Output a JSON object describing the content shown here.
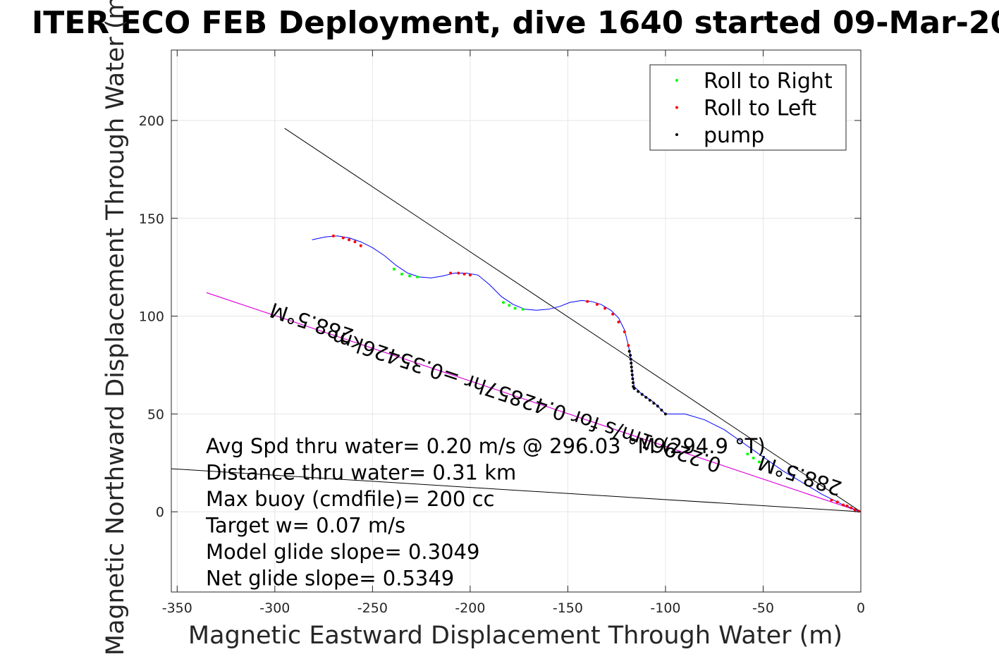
{
  "chart_data": {
    "type": "line",
    "title": "ITER ECO FEB Deployment, dive 1640 started 09-Mar-20",
    "xlabel": "Magnetic Eastward Displacement Through Water (m)",
    "ylabel": "Magnetic Northward Displacement Through Water (m)",
    "xlim": [
      -353,
      0
    ],
    "ylim": [
      -41,
      236
    ],
    "xticks": [
      -350,
      -300,
      -250,
      -200,
      -150,
      -100,
      -50,
      0
    ],
    "yticks": [
      0,
      50,
      100,
      150,
      200
    ],
    "xtick_labels": [
      "-350",
      "-300",
      "-250",
      "-200",
      "-150",
      "-100",
      "-50",
      "0"
    ],
    "ytick_labels": [
      "0",
      "50",
      "100",
      "150",
      "200"
    ],
    "grid": true,
    "legend_position": "top-right",
    "legend": [
      {
        "label": "Roll to Right",
        "color": "#00ff00"
      },
      {
        "label": "Roll to Left",
        "color": "#ff0000"
      },
      {
        "label": "pump",
        "color": "#000000"
      }
    ],
    "track": {
      "color": "#0000ff",
      "x": [
        0,
        -10,
        -20,
        -30,
        -40,
        -50,
        -60,
        -70,
        -80,
        -90,
        -100,
        -106,
        -112,
        -116,
        -117,
        -117.5,
        -118,
        -119,
        -121,
        -124,
        -128,
        -133,
        -138,
        -143,
        -149,
        -154,
        -160,
        -166,
        -172,
        -178,
        -184,
        -190,
        -196,
        -202,
        -208,
        -214,
        -220,
        -226,
        -232,
        -238,
        -244,
        -250,
        -256,
        -262,
        -268,
        -274,
        -281
      ],
      "y": [
        0,
        4,
        9,
        15,
        21,
        28,
        35,
        42,
        47,
        50,
        50,
        56,
        60,
        64,
        70,
        76,
        80,
        85,
        93,
        99,
        103,
        106,
        107.5,
        108,
        107,
        105,
        103.5,
        103,
        103.5,
        106,
        110,
        116,
        121,
        122,
        122,
        120.5,
        119.5,
        120,
        122,
        126,
        131,
        135,
        138,
        140,
        141,
        140.5,
        139
      ]
    },
    "roll_right_points": {
      "color": "#00ff00",
      "x": [
        -52,
        -55,
        -58,
        -173,
        -177,
        -180,
        -183,
        -227,
        -231,
        -235,
        -239
      ],
      "y": [
        25.5,
        27.5,
        29.5,
        103.5,
        104,
        105.5,
        107,
        120,
        120.5,
        121.5,
        124
      ]
    },
    "roll_left_points": {
      "color": "#ff0000",
      "x": [
        -1,
        -3,
        -5,
        -7,
        -9,
        -12,
        -15,
        -119,
        -121,
        -124,
        -127,
        -131,
        -135,
        -140,
        -200,
        -203,
        -206,
        -210,
        -256,
        -259,
        -262,
        -265,
        -270
      ],
      "y": [
        0.3,
        1,
        2,
        3,
        3.5,
        5,
        6,
        85,
        92,
        97,
        101,
        104,
        106,
        107.5,
        121,
        121.5,
        122,
        122,
        136,
        138,
        139,
        140,
        141
      ]
    },
    "pump_points": {
      "color": "#000000",
      "x": [
        -116.5,
        -116.6,
        -116.8,
        -117,
        -117.2,
        -117.4,
        -117.6,
        -117.8,
        -118,
        -118.5,
        -116,
        -114,
        -112,
        -110,
        -108,
        -106,
        -104,
        -102,
        -100
      ],
      "y": [
        64,
        66,
        68,
        70,
        72,
        74,
        76,
        78,
        80,
        82,
        63,
        61.5,
        60,
        58.5,
        57,
        55.5,
        54,
        52,
        50
      ]
    },
    "reference_lines": [
      {
        "name": "line-a",
        "color": "#000000",
        "x": [
          0,
          -295
        ],
        "y": [
          0,
          196
        ]
      },
      {
        "name": "line-b",
        "color": "#000000",
        "x": [
          0,
          -353
        ],
        "y": [
          0,
          22
        ]
      },
      {
        "name": "line-c",
        "color": "#000000",
        "x": [
          0,
          -335
        ],
        "y": [
          0,
          112
        ]
      },
      {
        "name": "line-d",
        "color": "#ff00ff",
        "x": [
          0,
          -335
        ],
        "y": [
          0,
          112
        ]
      }
    ],
    "rotated_labels": [
      {
        "text": "288.5°M",
        "x": -280,
        "y": 100,
        "angle": 198.5
      },
      {
        "text": "0.22961m/s for 0.42857hr =0.35426km",
        "x": -170,
        "y": 60,
        "angle": 198.5
      },
      {
        "text": "288.5°M",
        "x": -30,
        "y": 22,
        "angle": 198.5
      }
    ],
    "annotations": [
      "Avg Spd thru water=  0.20 m/s @ 296.03 °M (294.9 °T)",
      "Distance thru water=  0.31 km",
      "Max buoy (cmdfile)= 200 cc",
      "Target w= 0.07 m/s",
      "Model glide slope= 0.3049",
      "Net glide slope= 0.5349"
    ]
  }
}
